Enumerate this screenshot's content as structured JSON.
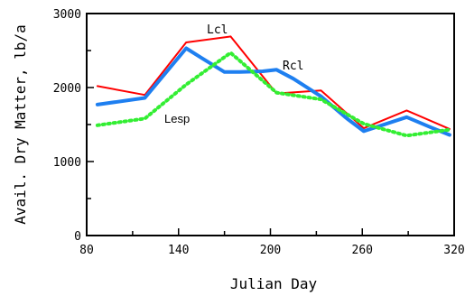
{
  "chart_data": {
    "type": "line",
    "xlabel": "Julian Day",
    "ylabel": "Avail. Dry Matter, lb/a",
    "xlim": [
      80,
      320
    ],
    "ylim": [
      0,
      3000
    ],
    "x_ticks": [
      "80",
      "140",
      "200",
      "260",
      "320"
    ],
    "y_ticks": [
      "0",
      "1000",
      "2000",
      "3000"
    ],
    "grid": false,
    "series": [
      {
        "name": "Lcl",
        "color": "#ff0000",
        "style": "solid",
        "x": [
          87,
          118,
          145,
          174,
          204,
          233,
          261,
          289,
          317
        ],
        "y": [
          2020,
          1900,
          2610,
          2690,
          1920,
          1960,
          1450,
          1690,
          1440
        ]
      },
      {
        "name": "Rcl",
        "color": "#1e7ff0",
        "style": "solid-thick",
        "x": [
          87,
          118,
          145,
          155,
          170,
          180,
          195,
          204,
          215,
          233,
          250,
          261,
          289,
          305,
          317
        ],
        "y": [
          1770,
          1860,
          2530,
          2400,
          2210,
          2210,
          2220,
          2240,
          2120,
          1880,
          1580,
          1410,
          1600,
          1460,
          1360
        ]
      },
      {
        "name": "Lesp",
        "color": "#33ee33",
        "style": "dotted",
        "x": [
          87,
          118,
          145,
          174,
          204,
          233,
          261,
          289,
          317
        ],
        "y": [
          1490,
          1580,
          2040,
          2470,
          1930,
          1840,
          1510,
          1350,
          1430
        ]
      }
    ]
  }
}
